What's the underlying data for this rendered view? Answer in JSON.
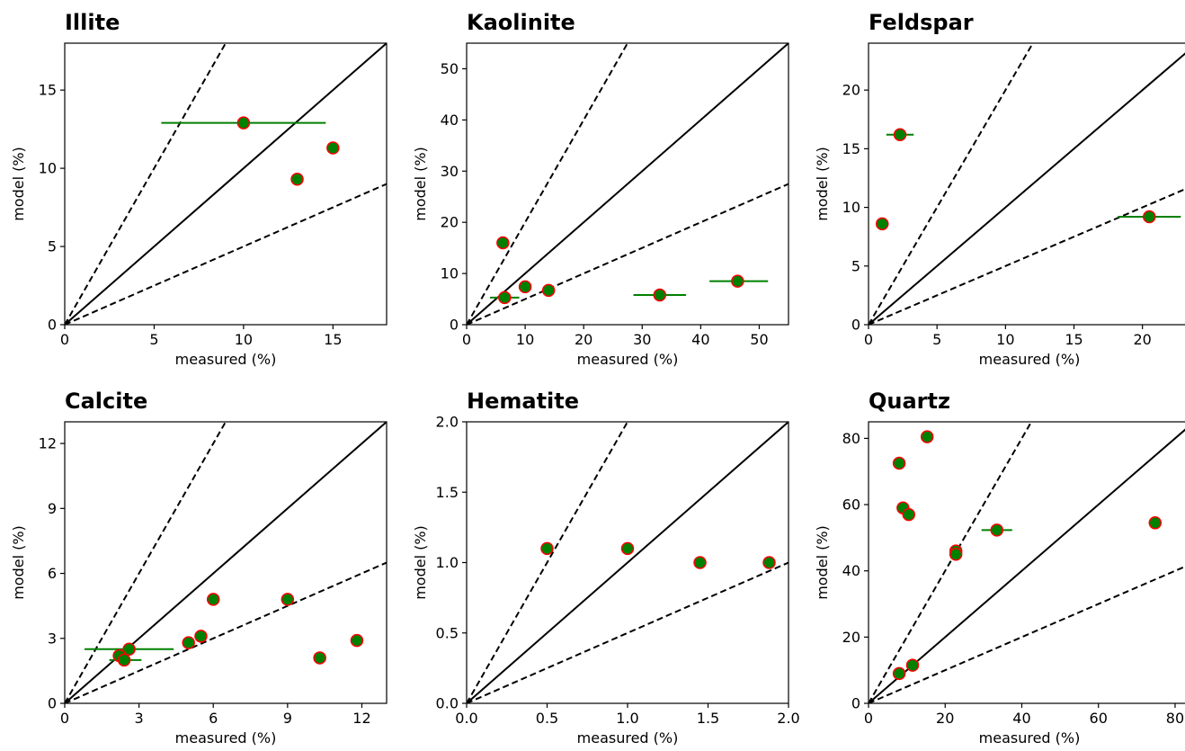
{
  "chart_data": [
    {
      "type": "scatter",
      "title": "Illite",
      "xlabel": "measured (%)",
      "ylabel": "model (%)",
      "xlim": [
        0,
        18
      ],
      "ylim": [
        0,
        18
      ],
      "xticks": [
        0,
        5,
        10,
        15
      ],
      "yticks": [
        0,
        5,
        10,
        15
      ],
      "xticklabels": [
        "0",
        "5",
        "10",
        "15"
      ],
      "yticklabels": [
        "0",
        "5",
        "10",
        "15"
      ],
      "reference_lines": [
        {
          "slope": 1,
          "style": "solid"
        },
        {
          "slope": 2,
          "style": "dashed"
        },
        {
          "slope": 0.5,
          "style": "dashed"
        }
      ],
      "points": [
        {
          "x": 10.0,
          "y": 12.9,
          "xerr_low": 5.4,
          "xerr_high": 14.6
        },
        {
          "x": 13.0,
          "y": 9.3
        },
        {
          "x": 15.0,
          "y": 11.3
        }
      ]
    },
    {
      "type": "scatter",
      "title": "Kaolinite",
      "xlabel": "measured (%)",
      "ylabel": "model (%)",
      "xlim": [
        0,
        55
      ],
      "ylim": [
        0,
        55
      ],
      "xticks": [
        0,
        10,
        20,
        30,
        40,
        50
      ],
      "yticks": [
        0,
        10,
        20,
        30,
        40,
        50
      ],
      "xticklabels": [
        "0",
        "10",
        "20",
        "30",
        "40",
        "50"
      ],
      "yticklabels": [
        "0",
        "10",
        "20",
        "30",
        "40",
        "50"
      ],
      "reference_lines": [
        {
          "slope": 1,
          "style": "solid"
        },
        {
          "slope": 2,
          "style": "dashed"
        },
        {
          "slope": 0.5,
          "style": "dashed"
        }
      ],
      "points": [
        {
          "x": 6.2,
          "y": 16.0
        },
        {
          "x": 6.5,
          "y": 5.3,
          "xerr_low": 4.0,
          "xerr_high": 9.0
        },
        {
          "x": 10.0,
          "y": 7.4
        },
        {
          "x": 14.0,
          "y": 6.7
        },
        {
          "x": 33.0,
          "y": 5.8,
          "xerr_low": 28.5,
          "xerr_high": 37.5
        },
        {
          "x": 46.3,
          "y": 8.5,
          "xerr_low": 41.5,
          "xerr_high": 51.5
        }
      ]
    },
    {
      "type": "scatter",
      "title": "Feldspar",
      "xlabel": "measured (%)",
      "ylabel": "model (%)",
      "xlim": [
        0,
        23.5
      ],
      "ylim": [
        0,
        24
      ],
      "xticks": [
        0,
        5,
        10,
        15,
        20
      ],
      "yticks": [
        0,
        5,
        10,
        15,
        20
      ],
      "xticklabels": [
        "0",
        "5",
        "10",
        "15",
        "20"
      ],
      "yticklabels": [
        "0",
        "5",
        "10",
        "15",
        "20"
      ],
      "reference_lines": [
        {
          "slope": 1,
          "style": "solid"
        },
        {
          "slope": 2,
          "style": "dashed"
        },
        {
          "slope": 0.5,
          "style": "dashed"
        }
      ],
      "points": [
        {
          "x": 1.0,
          "y": 8.6
        },
        {
          "x": 2.3,
          "y": 16.2,
          "xerr_low": 1.3,
          "xerr_high": 3.3
        },
        {
          "x": 20.5,
          "y": 9.2,
          "xerr_low": 18.2,
          "xerr_high": 22.8
        }
      ]
    },
    {
      "type": "scatter",
      "title": "Calcite",
      "xlabel": "measured (%)",
      "ylabel": "model (%)",
      "xlim": [
        0,
        13
      ],
      "ylim": [
        0,
        13
      ],
      "xticks": [
        0,
        3,
        6,
        9,
        12
      ],
      "yticks": [
        0,
        3,
        6,
        9,
        12
      ],
      "xticklabels": [
        "0",
        "3",
        "6",
        "9",
        "12"
      ],
      "yticklabels": [
        "0",
        "3",
        "6",
        "9",
        "12"
      ],
      "reference_lines": [
        {
          "slope": 1,
          "style": "solid"
        },
        {
          "slope": 2,
          "style": "dashed"
        },
        {
          "slope": 0.5,
          "style": "dashed"
        }
      ],
      "points": [
        {
          "x": 2.6,
          "y": 2.5,
          "xerr_low": 0.8,
          "xerr_high": 4.4
        },
        {
          "x": 2.2,
          "y": 2.2
        },
        {
          "x": 2.4,
          "y": 2.0,
          "xerr_low": 1.8,
          "xerr_high": 3.1
        },
        {
          "x": 5.0,
          "y": 2.8
        },
        {
          "x": 5.5,
          "y": 3.1
        },
        {
          "x": 6.0,
          "y": 4.8
        },
        {
          "x": 9.0,
          "y": 4.8
        },
        {
          "x": 10.3,
          "y": 2.1
        },
        {
          "x": 11.8,
          "y": 2.9
        }
      ]
    },
    {
      "type": "scatter",
      "title": "Hematite",
      "xlabel": "measured (%)",
      "ylabel": "model (%)",
      "xlim": [
        0,
        2.0
      ],
      "ylim": [
        0,
        2.0
      ],
      "xticks": [
        0,
        0.5,
        1.0,
        1.5,
        2.0
      ],
      "yticks": [
        0,
        0.5,
        1.0,
        1.5,
        2.0
      ],
      "xticklabels": [
        "0.0",
        "0.5",
        "1.0",
        "1.5",
        "2.0"
      ],
      "yticklabels": [
        "0.0",
        "0.5",
        "1.0",
        "1.5",
        "2.0"
      ],
      "reference_lines": [
        {
          "slope": 1,
          "style": "solid"
        },
        {
          "slope": 2,
          "style": "dashed"
        },
        {
          "slope": 0.5,
          "style": "dashed"
        }
      ],
      "points": [
        {
          "x": 0.5,
          "y": 1.1
        },
        {
          "x": 1.0,
          "y": 1.1
        },
        {
          "x": 1.45,
          "y": 1.0
        },
        {
          "x": 1.88,
          "y": 1.0
        }
      ]
    },
    {
      "type": "scatter",
      "title": "Quartz",
      "xlabel": "measured (%)",
      "ylabel": "model (%)",
      "xlim": [
        0,
        84
      ],
      "ylim": [
        0,
        85
      ],
      "xticks": [
        0,
        20,
        40,
        60,
        80
      ],
      "yticks": [
        0,
        20,
        40,
        60,
        80
      ],
      "xticklabels": [
        "0",
        "20",
        "40",
        "60",
        "80"
      ],
      "yticklabels": [
        "0",
        "20",
        "40",
        "60",
        "80"
      ],
      "reference_lines": [
        {
          "slope": 1,
          "style": "solid"
        },
        {
          "slope": 2,
          "style": "dashed"
        },
        {
          "slope": 0.5,
          "style": "dashed"
        }
      ],
      "points": [
        {
          "x": 8.0,
          "y": 9.0
        },
        {
          "x": 11.5,
          "y": 11.5
        },
        {
          "x": 8.0,
          "y": 72.5
        },
        {
          "x": 9.0,
          "y": 59.0
        },
        {
          "x": 10.5,
          "y": 57.0
        },
        {
          "x": 15.3,
          "y": 80.5
        },
        {
          "x": 22.8,
          "y": 46.0
        },
        {
          "x": 22.8,
          "y": 45.0
        },
        {
          "x": 33.5,
          "y": 52.3,
          "xerr_low": 29.5,
          "xerr_high": 37.5
        },
        {
          "x": 74.8,
          "y": 54.5
        }
      ]
    }
  ],
  "colors": {
    "marker_fill": "#008000",
    "marker_edge": "#ff0000",
    "errorbar": "#008000",
    "reference_line": "#000000"
  }
}
